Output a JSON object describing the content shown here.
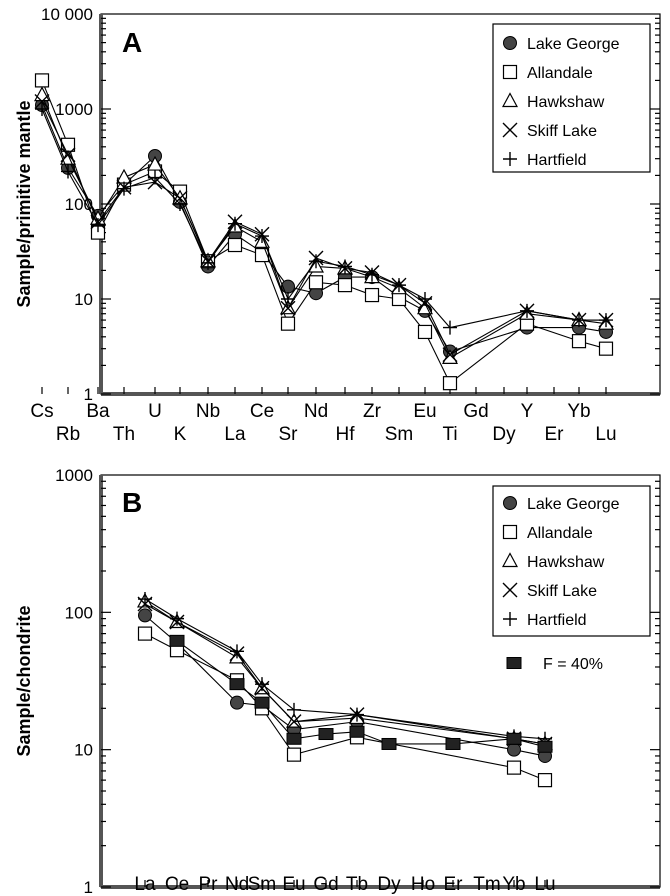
{
  "chart_data": [
    {
      "type": "line",
      "panel_label": "A",
      "ylabel": "Sample/primitive mantle",
      "yscale": "log",
      "ylim": [
        1,
        10000
      ],
      "yticks": [
        {
          "value": 1,
          "label": "1"
        },
        {
          "value": 10,
          "label": "10"
        },
        {
          "value": 100,
          "label": "100"
        },
        {
          "value": 1000,
          "label": "1000"
        },
        {
          "value": 10000,
          "label": "10 000"
        }
      ],
      "categories": [
        "Cs",
        "Rb",
        "Ba",
        "Th",
        "U",
        "K",
        "Nb",
        "La",
        "Ce",
        "Sr",
        "Nd",
        "Hf",
        "Zr",
        "Sm",
        "Eu",
        "Ti",
        "Gd",
        "Dy",
        "Y",
        "Er",
        "Yb",
        "Lu"
      ],
      "legend_position": "top-right",
      "series": [
        {
          "name": "Lake George",
          "marker": "filled-circle",
          "values": [
            1100,
            240,
            75,
            160,
            320,
            105,
            22,
            48,
            31,
            13.5,
            11.5,
            17,
            17,
            10.5,
            7.5,
            2.8,
            null,
            null,
            5,
            null,
            5,
            4.5
          ]
        },
        {
          "name": "Allandale",
          "marker": "open-square",
          "values": [
            2000,
            420,
            50,
            160,
            220,
            135,
            25,
            37,
            29,
            5.5,
            15,
            14,
            11,
            10,
            4.5,
            1.3,
            null,
            null,
            5.5,
            null,
            3.6,
            3
          ]
        },
        {
          "name": "Hawkshaw",
          "marker": "open-triangle",
          "values": [
            1400,
            300,
            70,
            190,
            260,
            115,
            25,
            58,
            40,
            8,
            22,
            21,
            17,
            13,
            8,
            2.4,
            null,
            null,
            7,
            null,
            6,
            5.5
          ]
        },
        {
          "name": "Skiff Lake",
          "marker": "x",
          "values": [
            1200,
            330,
            65,
            150,
            170,
            115,
            25,
            65,
            48,
            8,
            27,
            21,
            19,
            14,
            9,
            2.6,
            null,
            null,
            7.5,
            null,
            6,
            6
          ]
        },
        {
          "name": "Hartfield",
          "marker": "plus",
          "values": [
            1000,
            220,
            60,
            145,
            190,
            100,
            24,
            62,
            46,
            10,
            25,
            22,
            18,
            14,
            10,
            5,
            null,
            null,
            7.5,
            null,
            6,
            6
          ]
        }
      ]
    },
    {
      "type": "line",
      "panel_label": "B",
      "ylabel": "Sample/chondrite",
      "yscale": "log",
      "ylim": [
        1,
        1000
      ],
      "yticks": [
        {
          "value": 1,
          "label": "1"
        },
        {
          "value": 10,
          "label": "10"
        },
        {
          "value": 100,
          "label": "100"
        },
        {
          "value": 1000,
          "label": "1000"
        }
      ],
      "categories": [
        "La",
        "Ce",
        "Pr",
        "Nd",
        "Sm",
        "Eu",
        "Gd",
        "Tb",
        "Dy",
        "Ho",
        "Er",
        "Tm",
        "Yb",
        "Lu"
      ],
      "legend_position": "top-right",
      "series": [
        {
          "name": "Lake George",
          "marker": "filled-circle",
          "values": [
            95,
            60,
            null,
            22,
            21,
            14,
            null,
            16,
            null,
            null,
            null,
            null,
            10,
            9
          ]
        },
        {
          "name": "Allandale",
          "marker": "open-square",
          "values": [
            70,
            53,
            null,
            32,
            20,
            9.2,
            null,
            12.3,
            null,
            null,
            null,
            null,
            7.4,
            6
          ]
        },
        {
          "name": "Hawkshaw",
          "marker": "open-triangle",
          "values": [
            120,
            85,
            null,
            47,
            28,
            16,
            null,
            17,
            null,
            null,
            null,
            null,
            12,
            11
          ]
        },
        {
          "name": "Skiff Lake",
          "marker": "x",
          "values": [
            115,
            85,
            null,
            50,
            28,
            16,
            null,
            18,
            null,
            null,
            null,
            null,
            12,
            11
          ]
        },
        {
          "name": "Hartfield",
          "marker": "plus",
          "values": [
            125,
            90,
            null,
            52,
            30,
            19.5,
            null,
            18,
            null,
            null,
            null,
            null,
            12.5,
            12
          ]
        },
        {
          "name": "F = 40%",
          "marker": "filled-square",
          "values": [
            null,
            62,
            null,
            30,
            22,
            12,
            13,
            13.5,
            11,
            null,
            11,
            null,
            12,
            10.5
          ]
        }
      ]
    }
  ]
}
